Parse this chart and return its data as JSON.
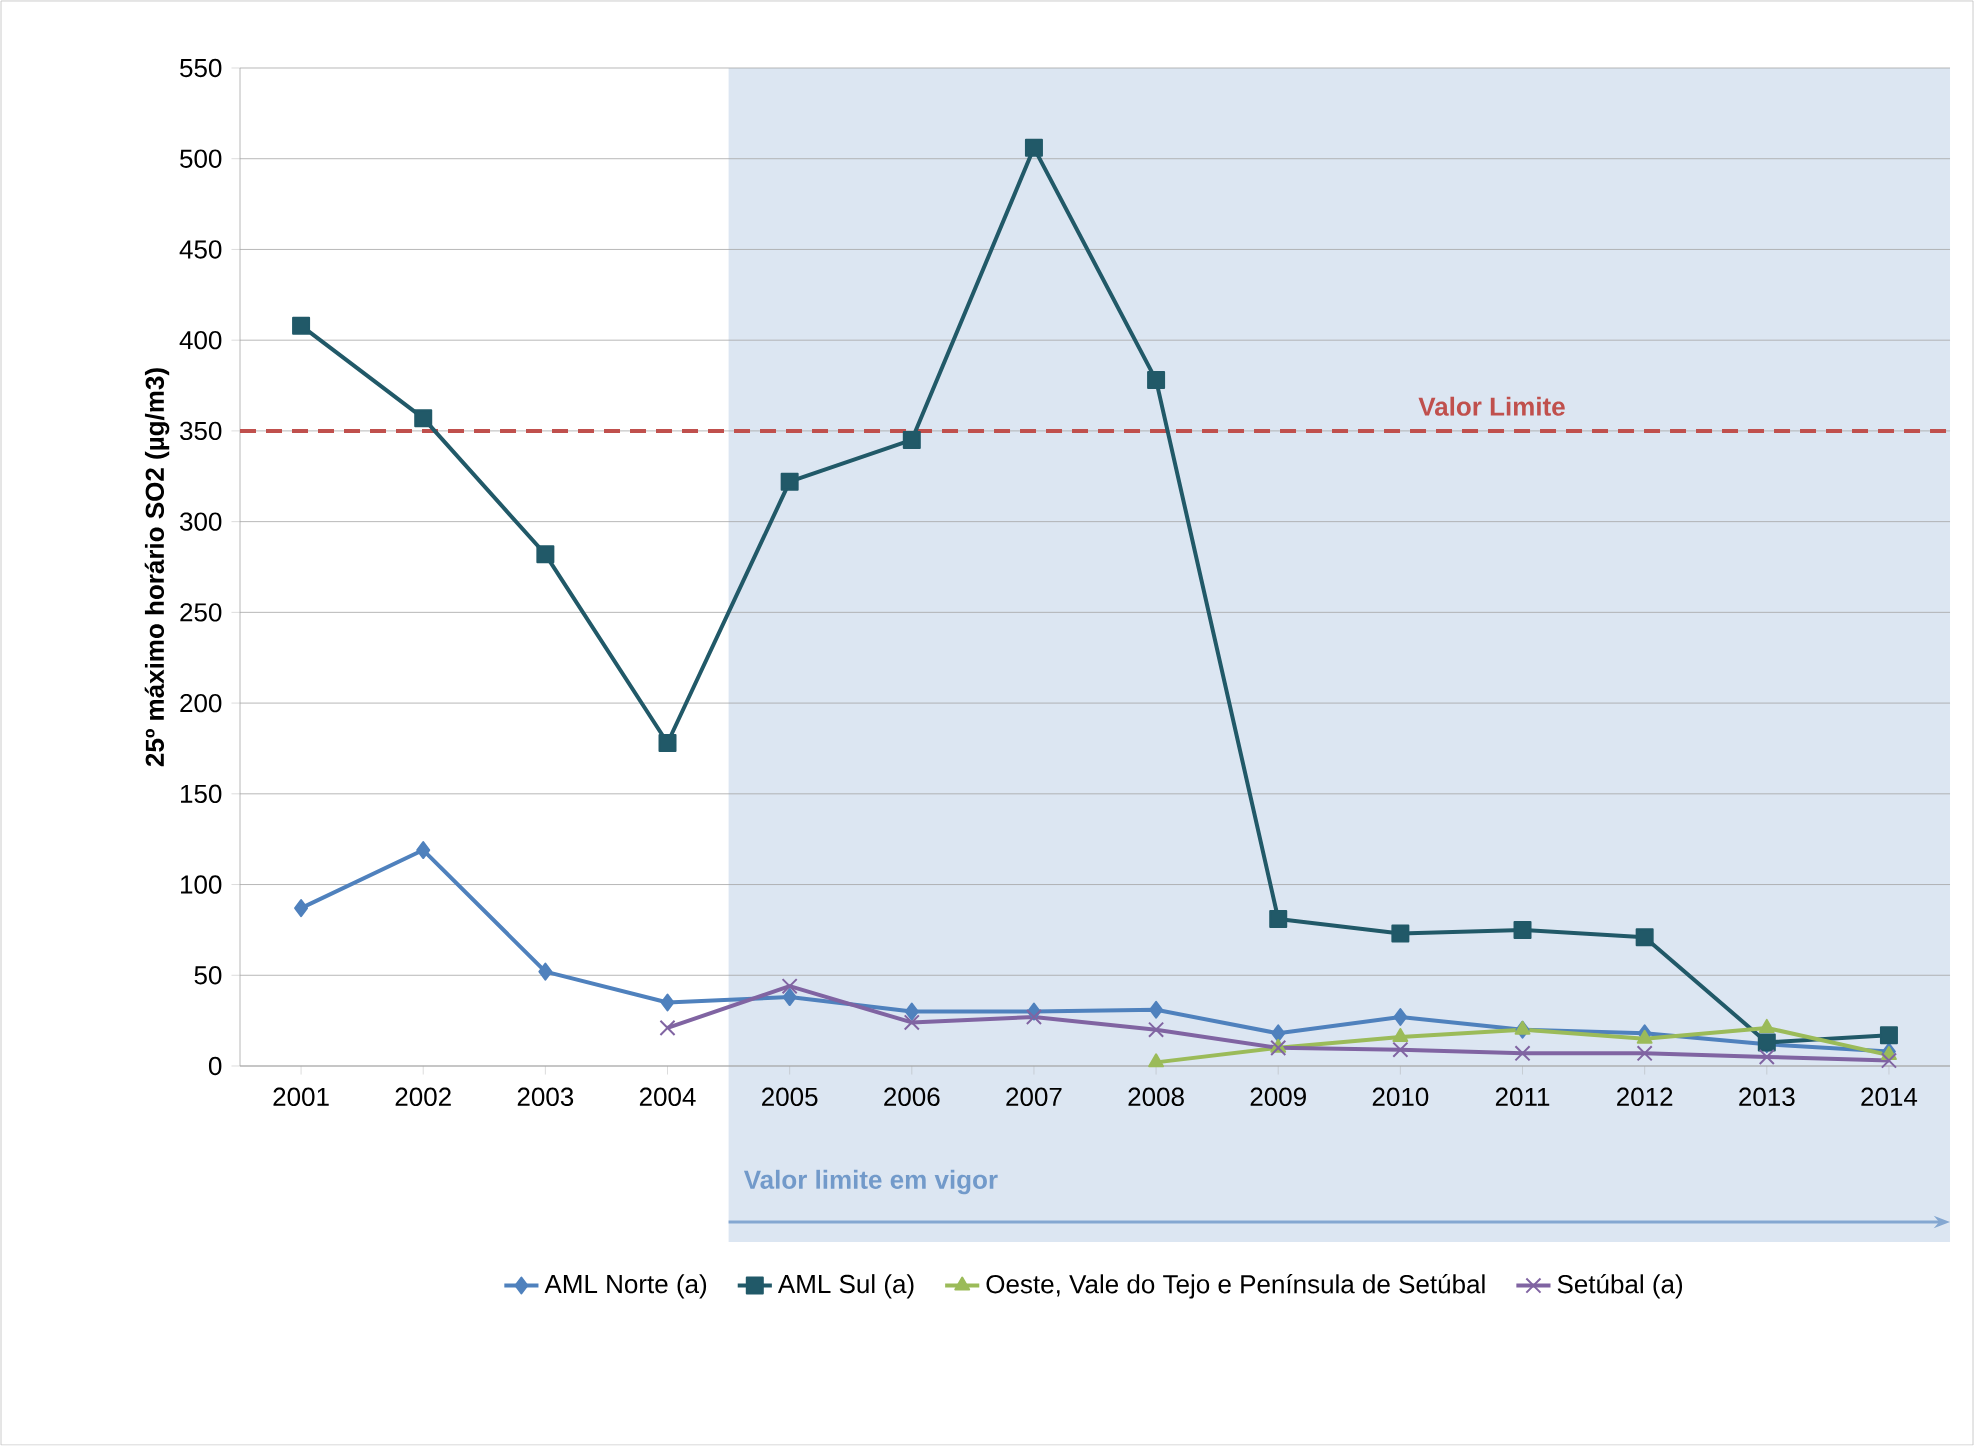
{
  "chart_data": {
    "type": "line",
    "ylabel": "25º máximo horário SO2 (µg/m3)",
    "categories": [
      "2001",
      "2002",
      "2003",
      "2004",
      "2005",
      "2006",
      "2007",
      "2008",
      "2009",
      "2010",
      "2011",
      "2012",
      "2013",
      "2014"
    ],
    "series": [
      {
        "name": "AML Norte (a)",
        "color": "#4f81bd",
        "marker": "diamond",
        "values": [
          87,
          119,
          52,
          35,
          38,
          30,
          30,
          31,
          18,
          27,
          20,
          18,
          12,
          8
        ]
      },
      {
        "name": "AML Sul (a)",
        "color": "#215968",
        "marker": "square",
        "values": [
          408,
          357,
          282,
          178,
          322,
          345,
          506,
          378,
          81,
          73,
          75,
          71,
          13,
          17
        ]
      },
      {
        "name": "Oeste, Vale do Tejo e Península de Setúbal",
        "color": "#9bbb59",
        "marker": "triangle",
        "values": [
          null,
          null,
          null,
          null,
          null,
          null,
          null,
          2,
          10,
          16,
          20,
          15,
          21,
          6
        ]
      },
      {
        "name": "Setúbal (a)",
        "color": "#8064a2",
        "marker": "cross",
        "values": [
          null,
          null,
          null,
          21,
          44,
          24,
          27,
          20,
          10,
          9,
          7,
          7,
          5,
          3
        ]
      }
    ],
    "ylim": [
      0,
      550
    ],
    "yticks": [
      0,
      50,
      100,
      150,
      200,
      250,
      300,
      350,
      400,
      450,
      500,
      550
    ],
    "grid": "y",
    "legend": "bottom",
    "ref_lines": [
      {
        "axis": "y",
        "value": 350,
        "label": "Valor Limite",
        "color": "#c0504d",
        "line_style": "dashed"
      }
    ],
    "bands": [
      {
        "axis": "x",
        "from": "2005",
        "to": "2014",
        "label": "Valor limite em vigor",
        "color": "#dce6f2"
      }
    ]
  }
}
